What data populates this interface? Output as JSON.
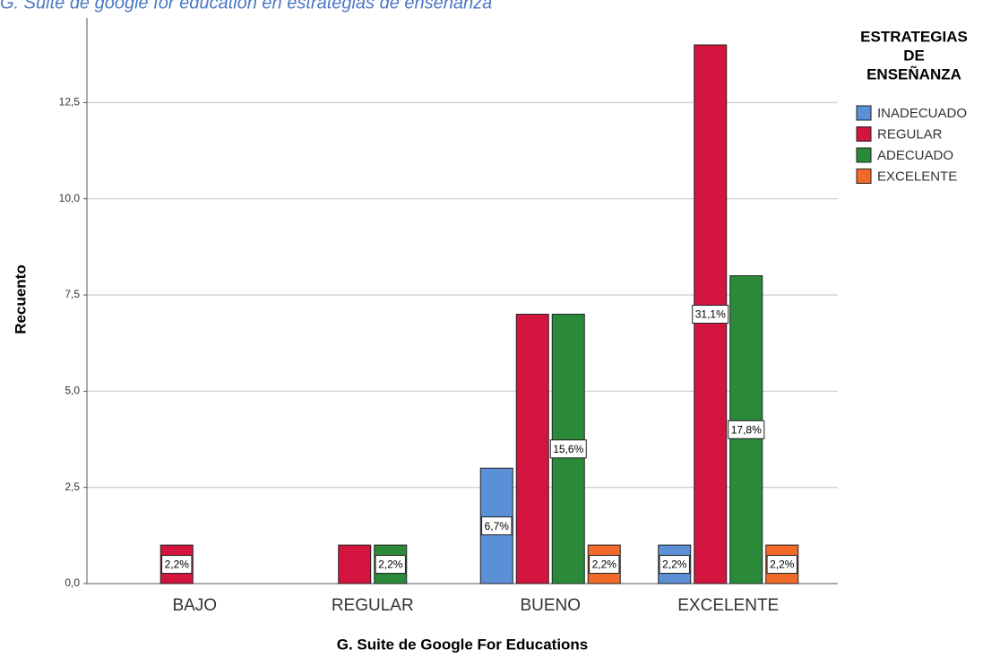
{
  "chart_data": {
    "type": "bar",
    "title": "G. Suite de google for education en estrategias de enseñanza",
    "x_label": "G. Suite de Google For Educations",
    "y_label": "Recuento",
    "legend_title": [
      "ESTRATEGIAS",
      "DE",
      "ENSEÑANZA"
    ],
    "categories": [
      "BAJO",
      "REGULAR",
      "BUENO",
      "EXCELENTE"
    ],
    "series": [
      {
        "name": "INADECUADO",
        "color": "#5b8fd6",
        "values": [
          null,
          null,
          3,
          1
        ],
        "data_labels": [
          null,
          null,
          "6,7%",
          "2,2%"
        ]
      },
      {
        "name": "REGULAR",
        "color": "#d3143e",
        "values": [
          1,
          1,
          7,
          14
        ],
        "data_labels": [
          "2,2%",
          null,
          null,
          "31,1%"
        ]
      },
      {
        "name": "ADECUADO",
        "color": "#2b8a3a",
        "values": [
          null,
          1,
          7,
          8
        ],
        "data_labels": [
          null,
          "2,2%",
          "15,6%",
          "17,8%"
        ]
      },
      {
        "name": "EXCELENTE",
        "color": "#f26a2a",
        "values": [
          null,
          null,
          1,
          1
        ],
        "data_labels": [
          null,
          null,
          "2,2%",
          "2,2%"
        ]
      }
    ],
    "ylim": [
      0,
      14.7
    ],
    "yticks": [
      {
        "value": 0,
        "label": "0,0"
      },
      {
        "value": 2.5,
        "label": "2,5"
      },
      {
        "value": 5,
        "label": "5,0"
      },
      {
        "value": 7.5,
        "label": "7,5"
      },
      {
        "value": 10,
        "label": "10,0"
      },
      {
        "value": 12.5,
        "label": "12,5"
      }
    ],
    "grid": true,
    "legend": "right"
  }
}
